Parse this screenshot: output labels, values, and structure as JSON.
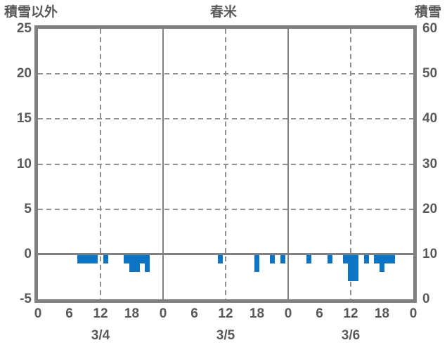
{
  "colors": {
    "text": "#595959",
    "axis": "#808080",
    "gridline": "#919191",
    "bar": "#0b74c4",
    "background": "#ffffff"
  },
  "chart_data": {
    "type": "bar",
    "title": "春米",
    "left_axis": {
      "title": "積雪以外",
      "ticks": [
        25,
        20,
        15,
        10,
        5,
        0,
        -5
      ]
    },
    "right_axis": {
      "title": "積雪",
      "ticks": [
        60,
        50,
        40,
        30,
        20,
        10,
        0
      ]
    },
    "ylim_left": [
      -5,
      25
    ],
    "ylim_right": [
      0,
      60
    ],
    "grid": {
      "horizontal_dashed_at": [
        20,
        15,
        10,
        5
      ],
      "zero_line_at": 0
    },
    "x_axis": {
      "total_hours": 72,
      "tick_labels": [
        "0",
        "6",
        "12",
        "18",
        "0",
        "6",
        "12",
        "18",
        "0",
        "6",
        "12",
        "18",
        "0"
      ],
      "tick_hours": [
        0,
        6,
        12,
        18,
        24,
        30,
        36,
        42,
        48,
        54,
        60,
        66,
        72
      ],
      "date_labels": [
        "3/4",
        "3/5",
        "3/6"
      ],
      "date_hours": [
        12,
        36,
        60
      ],
      "noon_gridline_hours": [
        12,
        36,
        60
      ],
      "midnight_gridline_hours": [
        24,
        48
      ]
    },
    "series_name": "積雪以外",
    "bars": [
      {
        "t": 8,
        "v": -1
      },
      {
        "t": 9,
        "v": -1
      },
      {
        "t": 10,
        "v": -1
      },
      {
        "t": 11,
        "v": -1
      },
      {
        "t": 13,
        "v": -1
      },
      {
        "t": 17,
        "v": -1
      },
      {
        "t": 18,
        "v": -2
      },
      {
        "t": 19,
        "v": -2
      },
      {
        "t": 20,
        "v": -1
      },
      {
        "t": 21,
        "v": -2
      },
      {
        "t": 35,
        "v": -1
      },
      {
        "t": 42,
        "v": -2
      },
      {
        "t": 45,
        "v": -1
      },
      {
        "t": 47,
        "v": -1
      },
      {
        "t": 52,
        "v": -1
      },
      {
        "t": 56,
        "v": -1
      },
      {
        "t": 59,
        "v": -1
      },
      {
        "t": 60,
        "v": -3
      },
      {
        "t": 61,
        "v": -3
      },
      {
        "t": 63,
        "v": -1
      },
      {
        "t": 65,
        "v": -1
      },
      {
        "t": 66,
        "v": -2
      },
      {
        "t": 67,
        "v": -1
      },
      {
        "t": 68,
        "v": -1
      }
    ]
  }
}
